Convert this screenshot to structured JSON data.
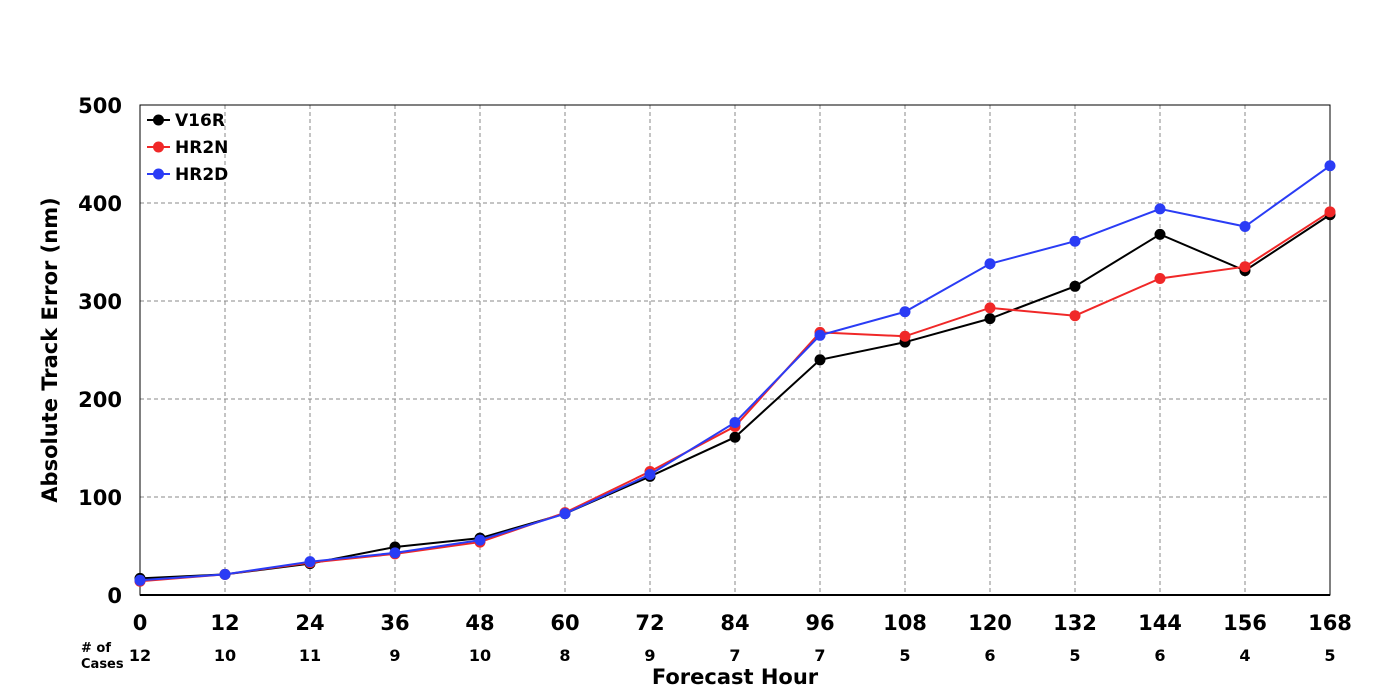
{
  "chart_data": {
    "type": "line",
    "xlabel": "Forecast Hour",
    "ylabel": "Absolute Track Error (nm)",
    "x": [
      0,
      12,
      24,
      36,
      48,
      60,
      72,
      84,
      96,
      108,
      120,
      132,
      144,
      156,
      168
    ],
    "ylim": [
      0,
      500
    ],
    "yticks": [
      0,
      100,
      200,
      300,
      400,
      500
    ],
    "grid": true,
    "legend_position": "top-left",
    "cases_label_line1": "# of",
    "cases_label_line2": "Cases",
    "cases": [
      12,
      10,
      11,
      9,
      10,
      8,
      9,
      7,
      7,
      5,
      6,
      5,
      6,
      4,
      5
    ],
    "series": [
      {
        "name": "V16R",
        "color": "#000000",
        "values": [
          17,
          21,
          32,
          49,
          58,
          83,
          121,
          161,
          240,
          258,
          282,
          315,
          368,
          331,
          388
        ]
      },
      {
        "name": "HR2N",
        "color": "#f02828",
        "values": [
          14,
          21,
          33,
          42,
          54,
          84,
          126,
          172,
          268,
          264,
          293,
          285,
          323,
          335,
          391
        ]
      },
      {
        "name": "HR2D",
        "color": "#2a3cf5",
        "values": [
          15,
          21,
          34,
          43,
          56,
          83,
          123,
          176,
          265,
          289,
          338,
          361,
          394,
          376,
          438
        ]
      }
    ]
  }
}
